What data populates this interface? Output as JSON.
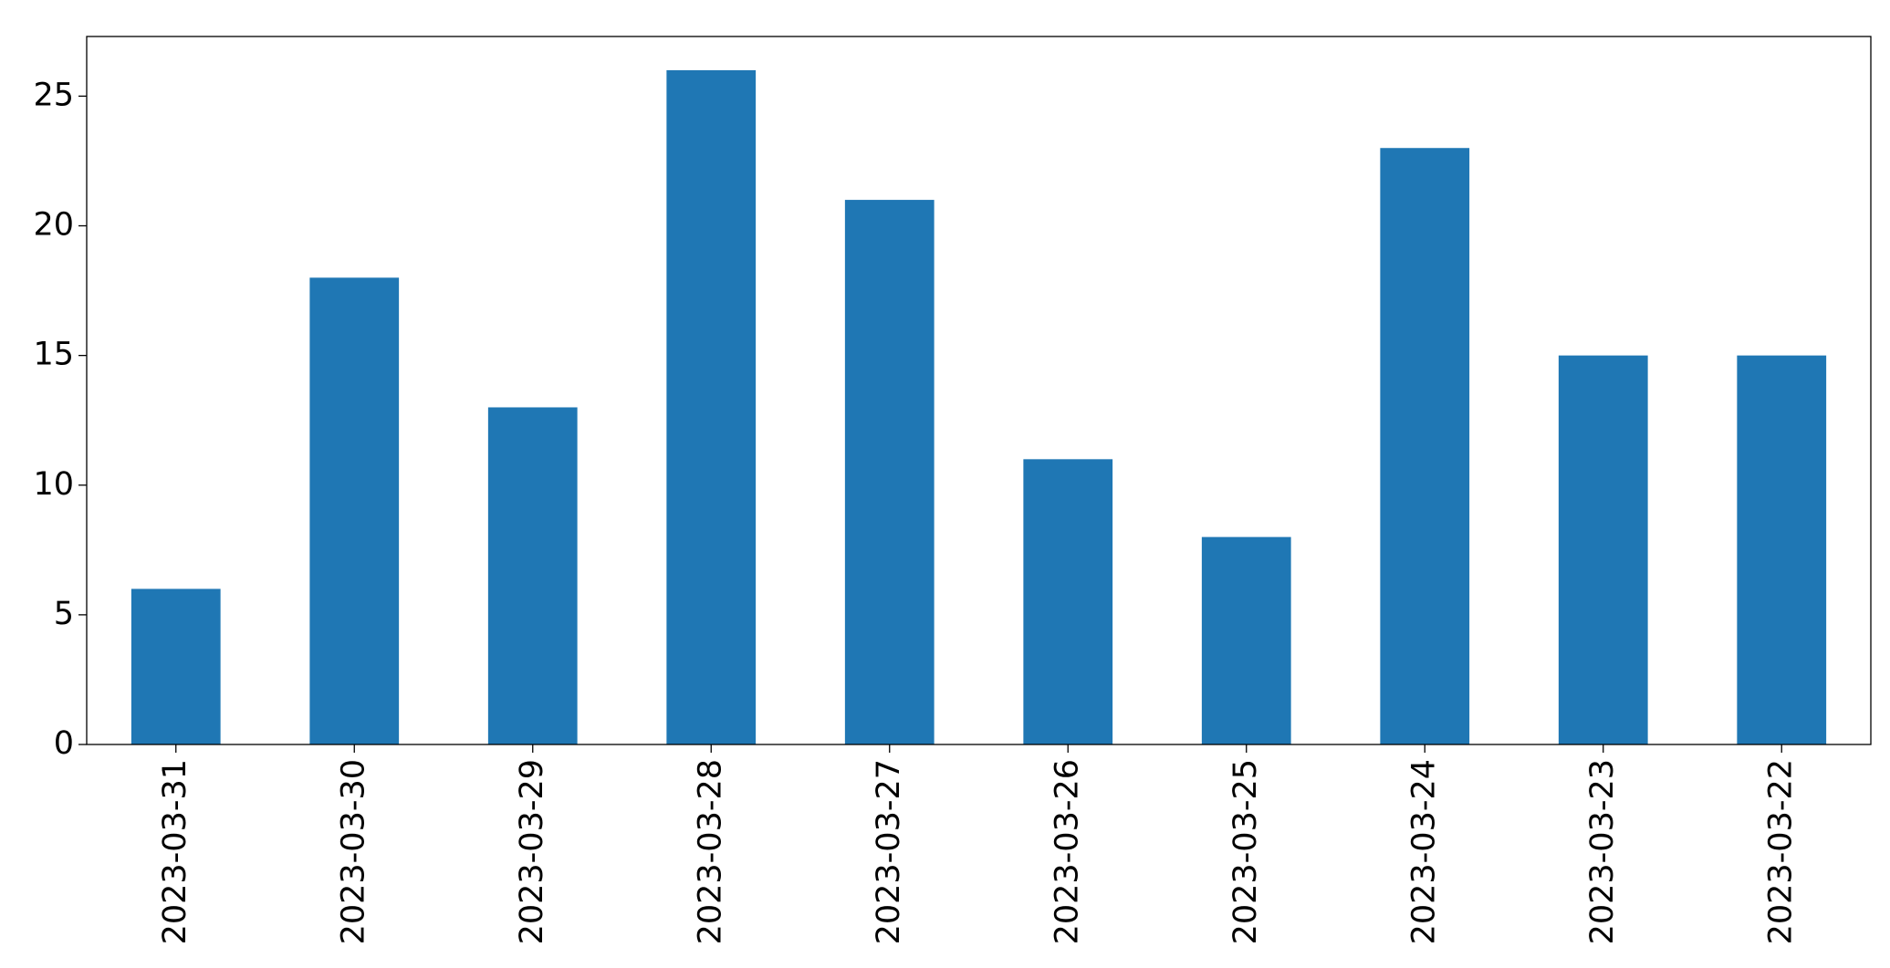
{
  "chart_data": {
    "type": "bar",
    "categories": [
      "2023-03-31",
      "2023-03-30",
      "2023-03-29",
      "2023-03-28",
      "2023-03-27",
      "2023-03-26",
      "2023-03-25",
      "2023-03-24",
      "2023-03-23",
      "2023-03-22"
    ],
    "values": [
      6,
      18,
      13,
      26,
      21,
      11,
      8,
      23,
      15,
      15
    ],
    "color": "#1f77b4",
    "ylim": [
      0,
      27.3
    ],
    "yticks": [
      0,
      5,
      10,
      15,
      20,
      25
    ],
    "grid": false
  }
}
